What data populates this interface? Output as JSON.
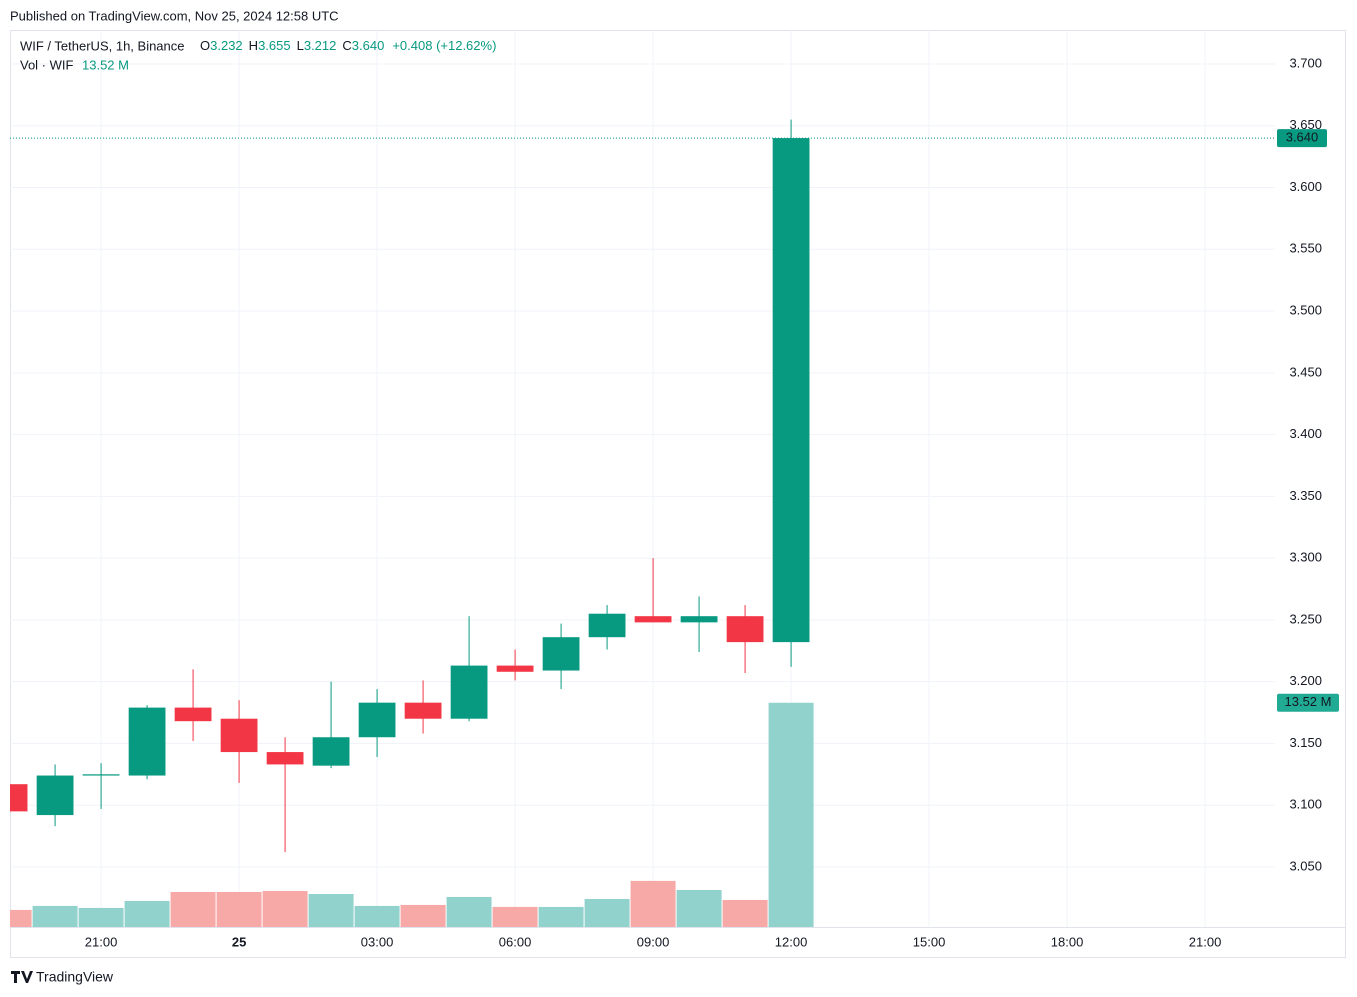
{
  "published": "Published on TradingView.com, Nov 25, 2024 12:58 UTC",
  "brand": "TradingView",
  "chart_data": {
    "type": "candlestick",
    "title": "WIF / TetherUS, 1h, Binance",
    "ohlc_legend": [
      {
        "key": "O",
        "value": "3.232"
      },
      {
        "key": "H",
        "value": "3.655"
      },
      {
        "key": "L",
        "value": "3.212"
      },
      {
        "key": "C",
        "value": "3.640"
      }
    ],
    "change": "+0.408 (+12.62%)",
    "volume_title": "Vol · WIF",
    "x": [
      -5,
      -4,
      -3,
      -2,
      -1,
      0,
      1,
      2,
      3,
      4,
      5,
      6,
      7,
      8,
      9,
      10,
      11,
      12
    ],
    "xlim": [
      -4.98,
      22.52
    ],
    "xticks": [
      {
        "value": -3,
        "label": "21:00"
      },
      {
        "value": 0,
        "label": "25"
      },
      {
        "value": 3,
        "label": "03:00"
      },
      {
        "value": 6,
        "label": "06:00"
      },
      {
        "value": 9,
        "label": "09:00"
      },
      {
        "value": 12,
        "label": "12:00"
      },
      {
        "value": 15,
        "label": "15:00"
      },
      {
        "value": 18,
        "label": "18:00"
      },
      {
        "value": 21,
        "label": "21:00"
      }
    ],
    "open": [
      3.117,
      3.092,
      3.124,
      3.124,
      3.179,
      3.17,
      3.143,
      3.132,
      3.155,
      3.183,
      3.17,
      3.213,
      3.209,
      3.236,
      3.253,
      3.248,
      3.253,
      3.232
    ],
    "high": [
      3.118,
      3.133,
      3.134,
      3.181,
      3.21,
      3.185,
      3.155,
      3.2,
      3.194,
      3.201,
      3.253,
      3.226,
      3.247,
      3.262,
      3.3,
      3.269,
      3.262,
      3.655
    ],
    "low": [
      3.093,
      3.083,
      3.097,
      3.121,
      3.152,
      3.118,
      3.062,
      3.13,
      3.139,
      3.158,
      3.168,
      3.201,
      3.194,
      3.226,
      3.248,
      3.224,
      3.207,
      3.212
    ],
    "close": [
      3.095,
      3.124,
      3.125,
      3.179,
      3.168,
      3.143,
      3.133,
      3.155,
      3.183,
      3.17,
      3.213,
      3.208,
      3.236,
      3.255,
      3.248,
      3.253,
      3.232,
      3.64
    ],
    "volume": [
      1.03,
      1.27,
      1.15,
      1.57,
      2.11,
      2.11,
      2.17,
      1.99,
      1.27,
      1.33,
      1.81,
      1.21,
      1.21,
      1.69,
      2.78,
      2.23,
      1.63,
      13.52
    ],
    "volume_labels": [
      null,
      null,
      null,
      null,
      null,
      null,
      null,
      null,
      null,
      null,
      null,
      null,
      null,
      null,
      null,
      null,
      null,
      "13.52 M"
    ],
    "up_color": "#089981",
    "down_color": "#f23645",
    "volume_up_color": "#92d2cc",
    "volume_down_color": "#f7a9a7",
    "ylim": [
      3.0014,
      3.7275
    ],
    "yticks": [
      {
        "value": 3.05,
        "label": "3.050"
      },
      {
        "value": 3.1,
        "label": "3.100"
      },
      {
        "value": 3.15,
        "label": "3.150"
      },
      {
        "value": 3.2,
        "label": "3.200"
      },
      {
        "value": 3.25,
        "label": "3.250"
      },
      {
        "value": 3.3,
        "label": "3.300"
      },
      {
        "value": 3.35,
        "label": "3.350"
      },
      {
        "value": 3.4,
        "label": "3.400"
      },
      {
        "value": 3.45,
        "label": "3.450"
      },
      {
        "value": 3.5,
        "label": "3.500"
      },
      {
        "value": 3.55,
        "label": "3.550"
      },
      {
        "value": 3.6,
        "label": "3.600"
      },
      {
        "value": 3.65,
        "label": "3.650"
      },
      {
        "value": 3.7,
        "label": "3.700"
      }
    ],
    "last_price": {
      "value": 3.64,
      "label": "3.640"
    },
    "grid": true
  }
}
